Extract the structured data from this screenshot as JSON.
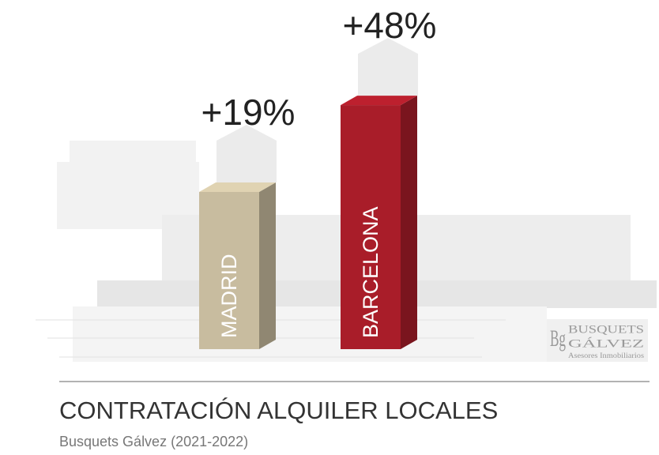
{
  "chart_data": {
    "type": "bar3d",
    "title": "CONTRATACIÓN ALQUILER LOCALES",
    "subtitle": "Busquets Gálvez  (2021-2022)",
    "categories": [
      "MADRID",
      "BARCELONA"
    ],
    "values": [
      19,
      48
    ],
    "value_labels": [
      "+19%",
      "+48%"
    ],
    "colors": [
      "#c8bc9f",
      "#a91d29"
    ]
  },
  "logo": {
    "mark": "Bg",
    "name": "BUSQUETS",
    "surname": "GÁLVEZ",
    "tagline": "Asesores Inmobiliarios"
  }
}
